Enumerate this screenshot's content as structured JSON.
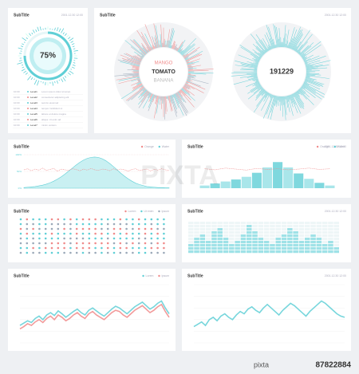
{
  "gauge": {
    "title": "SubTitle",
    "date": "2001.12.30 12:00",
    "value": 75,
    "value_label": "75%",
    "list": [
      {
        "time": "10:00",
        "level": "Level1",
        "text": "Lorem ipsum dolor sit amet"
      },
      {
        "time": "10:00",
        "level": "Level2",
        "text": "consectetur adipiscing elit"
      },
      {
        "time": "10:00",
        "level": "Level3",
        "text": "sed do eiusmod"
      },
      {
        "time": "10:00",
        "level": "Level4",
        "text": "tempor incididunt ut"
      },
      {
        "time": "10:00",
        "level": "Level5",
        "text": "labore et dolore magna"
      },
      {
        "time": "10:00",
        "level": "Level6",
        "text": "aliqua. Ut enim ad"
      },
      {
        "time": "10:00",
        "level": "Level7",
        "text": "minim veniam"
      }
    ]
  },
  "radial": {
    "title": "SubTitle",
    "date": "2001.12.30 12:00",
    "words": [
      "MANGO",
      "TOMATO",
      "BANANA"
    ],
    "number": "191229"
  },
  "area_chart": {
    "title": "SubTitle",
    "legend": [
      {
        "name": "Orange",
        "color": "#f08a8a"
      },
      {
        "name": "Water",
        "color": "#5fcfd6"
      }
    ],
    "ylim": [
      0,
      100
    ],
    "yticks": [
      {
        "value": 100,
        "label": "100%"
      },
      {
        "value": 50,
        "label": "50%"
      },
      {
        "value": 0,
        "label": "0%"
      }
    ],
    "area": [
      2,
      3,
      4,
      5,
      7,
      9,
      12,
      16,
      21,
      27,
      34,
      42,
      51,
      60,
      69,
      77,
      84,
      89,
      92,
      93,
      92,
      88,
      82,
      74,
      65,
      55,
      45,
      36,
      28,
      21,
      15,
      11,
      8,
      5,
      4,
      3,
      2,
      2,
      1,
      1
    ],
    "line": [
      55,
      58,
      52,
      57,
      54,
      60,
      53,
      56,
      59,
      51,
      57,
      55,
      53,
      58,
      56,
      52,
      57,
      54,
      59,
      55,
      53,
      57,
      56,
      52,
      58,
      54,
      57,
      55,
      51,
      56,
      58,
      53,
      55,
      57,
      52,
      56,
      54,
      58,
      55,
      53
    ]
  },
  "bar_chart": {
    "title": "SubTitle",
    "date": "2001.12.30 12:00",
    "legend": [
      {
        "name": "Orange",
        "color": "#f08a8a"
      },
      {
        "name": "Water",
        "color": "#5fcfd6"
      }
    ],
    "ylim": [
      0,
      100
    ],
    "values": [
      8,
      14,
      20,
      26,
      34,
      46,
      62,
      78,
      62,
      44,
      28,
      16,
      8
    ],
    "line": [
      58,
      55,
      60,
      57,
      54,
      59,
      56,
      58,
      55,
      57,
      60,
      56,
      58
    ]
  },
  "dot_chart": {
    "title": "SubTitle",
    "legend": [
      {
        "name": "Lorem",
        "color": "#f08a8a"
      },
      {
        "name": "Ut enim",
        "color": "#5fcfd6"
      },
      {
        "name": "Ipsum",
        "color": "#9aa8b8"
      }
    ]
  },
  "tile_chart": {
    "title": "SubTitle",
    "date": "2001.12.30 12:00",
    "ylim": [
      0,
      10
    ],
    "values": [
      3,
      5,
      6,
      4,
      7,
      8,
      5,
      3,
      4,
      6,
      9,
      7,
      5,
      4,
      3,
      5,
      6,
      8,
      7,
      4,
      5,
      6,
      5,
      3,
      4,
      2
    ]
  },
  "line_chart_a": {
    "title": "SubTitle",
    "ylim": [
      0,
      100
    ],
    "series": [
      {
        "name": "Lorem",
        "color": "#5fcfd6",
        "values": [
          30,
          34,
          38,
          35,
          42,
          46,
          40,
          48,
          52,
          47,
          55,
          50,
          44,
          49,
          54,
          58,
          52,
          48,
          56,
          60,
          55,
          50,
          46,
          52,
          58,
          63,
          60,
          55,
          50,
          56,
          62,
          66,
          70,
          64,
          58,
          62,
          68,
          72,
          60,
          50
        ]
      },
      {
        "name": "Ipsum",
        "color": "#f08a8a",
        "values": [
          24,
          28,
          33,
          30,
          36,
          40,
          35,
          42,
          46,
          40,
          48,
          44,
          38,
          42,
          48,
          52,
          46,
          42,
          50,
          54,
          48,
          44,
          40,
          46,
          52,
          56,
          54,
          48,
          44,
          50,
          56,
          60,
          64,
          58,
          52,
          56,
          62,
          66,
          54,
          44
        ]
      }
    ]
  },
  "line_chart_b": {
    "title": "SubTitle",
    "date": "2001.12.30 12:00",
    "ylim": [
      0,
      100
    ],
    "series": [
      {
        "name": "Water",
        "color": "#5fcfd6",
        "values": [
          28,
          32,
          36,
          30,
          40,
          44,
          38,
          46,
          50,
          44,
          40,
          48,
          54,
          50,
          58,
          62,
          56,
          52,
          60,
          66,
          60,
          54,
          48,
          56,
          62,
          68,
          64,
          58,
          52,
          46,
          54,
          60,
          66,
          72,
          68,
          62,
          56,
          50,
          46,
          44
        ]
      }
    ]
  },
  "watermark": {
    "logo": "PIXTA",
    "site": "pixta",
    "id": "87822884"
  }
}
